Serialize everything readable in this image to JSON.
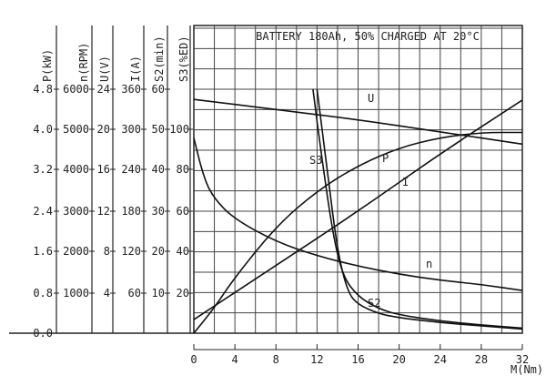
{
  "chart_data": {
    "type": "line",
    "title": "BATTERY 180Ah, 50% CHARGED AT 20°C",
    "xlabel": "M(Nm)",
    "x_ticks": [
      "0",
      "4",
      "8",
      "12",
      "16",
      "20",
      "24",
      "28",
      "32"
    ],
    "xlim": [
      0,
      32
    ],
    "left_axes": [
      {
        "label": "P(kW)",
        "ticks": [
          "4.8",
          "4.0",
          "3.2",
          "2.4",
          "1.6",
          "0.8",
          "0.0"
        ]
      },
      {
        "label": "n(RPM)",
        "ticks": [
          "6000",
          "5000",
          "4000",
          "3000",
          "2000",
          "1000"
        ]
      },
      {
        "label": "U(V)",
        "ticks": [
          "24",
          "20",
          "16",
          "12",
          "8",
          "4"
        ]
      },
      {
        "label": "I(A)",
        "ticks": [
          "360",
          "300",
          "240",
          "180",
          "120",
          "60"
        ]
      },
      {
        "label": "S2(min)",
        "ticks": [
          "60",
          "50",
          "40",
          "30",
          "20",
          "10"
        ]
      },
      {
        "label": "S3(%ED)",
        "ticks": [
          "100",
          "80",
          "60",
          "40",
          "20"
        ]
      }
    ],
    "grid": true,
    "series": [
      {
        "name": "U",
        "axis": "U(V)",
        "x": [
          0,
          8,
          16,
          24,
          32
        ],
        "values": [
          23.0,
          22.0,
          21.0,
          19.8,
          18.6
        ]
      },
      {
        "name": "P",
        "axis": "P(kW)",
        "x": [
          0,
          2,
          4,
          8,
          12,
          16,
          20,
          24,
          28,
          32
        ],
        "values": [
          0.0,
          0.5,
          1.1,
          2.1,
          2.8,
          3.3,
          3.65,
          3.85,
          3.95,
          3.95
        ]
      },
      {
        "name": "I",
        "axis": "I(A)",
        "x": [
          0,
          8,
          16,
          24,
          32
        ],
        "values": [
          20,
          100,
          180,
          265,
          344
        ]
      },
      {
        "name": "n",
        "axis": "n(RPM)",
        "x": [
          0,
          1,
          2,
          4,
          8,
          12,
          16,
          20,
          24,
          28,
          32
        ],
        "values": [
          4800,
          3800,
          3300,
          2800,
          2250,
          1900,
          1650,
          1450,
          1300,
          1200,
          1050
        ]
      },
      {
        "name": "S2",
        "axis": "S2(min)",
        "x": [
          12.0,
          13,
          14,
          15,
          16,
          18,
          20,
          24,
          28,
          32
        ],
        "values": [
          60,
          40,
          20,
          10,
          7,
          4.8,
          3.8,
          2.6,
          1.8,
          1.0
        ]
      },
      {
        "name": "S3",
        "axis": "S3(%ED)",
        "x": [
          11.6,
          12.5,
          13.5,
          14.5,
          16,
          18,
          20,
          24,
          28,
          32
        ],
        "values": [
          120,
          85,
          50,
          28,
          18,
          12,
          9,
          6,
          4,
          2.5
        ]
      }
    ]
  }
}
